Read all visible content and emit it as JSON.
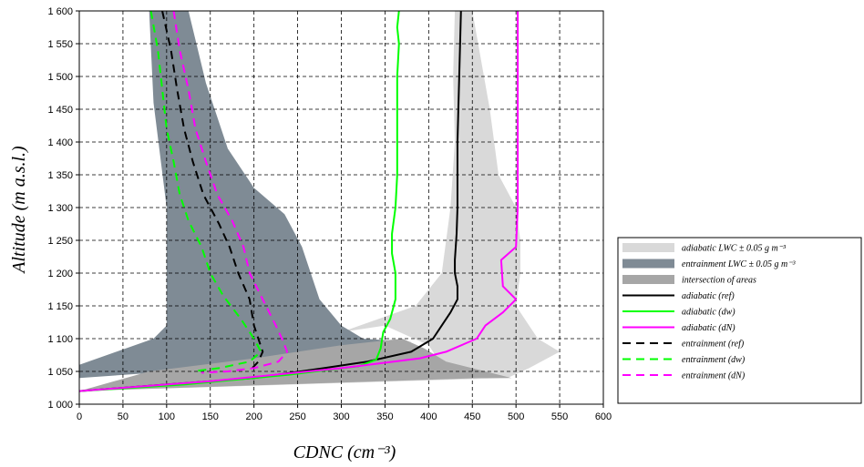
{
  "chart_data": {
    "type": "line",
    "xlabel": "CDNC (cm⁻³)",
    "ylabel": "Altitude (m a.s.l.)",
    "xlim": [
      0,
      600
    ],
    "ylim": [
      1000,
      1600
    ],
    "x_ticks": [
      "0",
      "50",
      "100",
      "150",
      "200",
      "250",
      "300",
      "350",
      "400",
      "450",
      "500",
      "550",
      "600"
    ],
    "y_ticks": [
      "1 000",
      "1 050",
      "1 100",
      "1 150",
      "1 200",
      "1 250",
      "1 300",
      "1 350",
      "1 400",
      "1 450",
      "1 500",
      "1 550",
      "1 600"
    ],
    "grid": true,
    "legend_position": "right",
    "areas": [
      {
        "name": "adiabatic LWC ± 0.05 g m⁻³",
        "color": "#d9d9d9",
        "polygon": [
          [
            430,
            1600
          ],
          [
            450,
            1600
          ],
          [
            470,
            1450
          ],
          [
            480,
            1350
          ],
          [
            500,
            1300
          ],
          [
            505,
            1250
          ],
          [
            505,
            1200
          ],
          [
            500,
            1150
          ],
          [
            525,
            1100
          ],
          [
            550,
            1080
          ],
          [
            515,
            1055
          ],
          [
            490,
            1040
          ],
          [
            0,
            1020
          ],
          [
            420,
            1050
          ],
          [
            400,
            1090
          ],
          [
            350,
            1120
          ],
          [
            300,
            1110
          ],
          [
            385,
            1150
          ],
          [
            415,
            1200
          ],
          [
            425,
            1300
          ],
          [
            430,
            1400
          ],
          [
            428,
            1500
          ]
        ]
      },
      {
        "name": "entrainment LWC ± 0.05 g m⁻³",
        "color": "#7f8b95",
        "polygon": [
          [
            80,
            1600
          ],
          [
            125,
            1600
          ],
          [
            145,
            1490
          ],
          [
            170,
            1390
          ],
          [
            200,
            1330
          ],
          [
            235,
            1290
          ],
          [
            255,
            1240
          ],
          [
            265,
            1200
          ],
          [
            275,
            1160
          ],
          [
            300,
            1120
          ],
          [
            325,
            1100
          ],
          [
            380,
            1095
          ],
          [
            270,
            1065
          ],
          [
            0,
            1040
          ],
          [
            0,
            1060
          ],
          [
            85,
            1100
          ],
          [
            100,
            1120
          ],
          [
            100,
            1300
          ],
          [
            85,
            1460
          ]
        ]
      },
      {
        "name": "intersection of areas",
        "color": "#a6a6a6",
        "polygon": [
          [
            0,
            1020
          ],
          [
            80,
            1050
          ],
          [
            200,
            1070
          ],
          [
            300,
            1090
          ],
          [
            370,
            1100
          ],
          [
            395,
            1085
          ],
          [
            420,
            1065
          ],
          [
            495,
            1040
          ],
          [
            460,
            1040
          ]
        ]
      }
    ],
    "series": [
      {
        "name": "adiabatic (ref)",
        "color": "#000000",
        "dash": "solid",
        "points": [
          [
            0,
            1020
          ],
          [
            100,
            1030
          ],
          [
            200,
            1040
          ],
          [
            280,
            1055
          ],
          [
            330,
            1065
          ],
          [
            380,
            1080
          ],
          [
            405,
            1100
          ],
          [
            415,
            1120
          ],
          [
            425,
            1140
          ],
          [
            433,
            1160
          ],
          [
            433,
            1180
          ],
          [
            430,
            1200
          ],
          [
            430,
            1220
          ],
          [
            432,
            1260
          ],
          [
            433,
            1300
          ],
          [
            433,
            1400
          ],
          [
            434,
            1450
          ],
          [
            436,
            1550
          ],
          [
            437,
            1600
          ]
        ]
      },
      {
        "name": "adiabatic (dw)",
        "color": "#00ff00",
        "dash": "solid",
        "points": [
          [
            0,
            1020
          ],
          [
            120,
            1030
          ],
          [
            240,
            1045
          ],
          [
            320,
            1058
          ],
          [
            340,
            1068
          ],
          [
            345,
            1085
          ],
          [
            348,
            1110
          ],
          [
            356,
            1130
          ],
          [
            362,
            1160
          ],
          [
            362,
            1200
          ],
          [
            358,
            1230
          ],
          [
            358,
            1260
          ],
          [
            362,
            1300
          ],
          [
            364,
            1350
          ],
          [
            364,
            1500
          ],
          [
            366,
            1550
          ],
          [
            364,
            1575
          ],
          [
            366,
            1600
          ]
        ]
      },
      {
        "name": "adiabatic (dN)",
        "color": "#ff00ff",
        "dash": "solid",
        "points": [
          [
            0,
            1020
          ],
          [
            150,
            1035
          ],
          [
            300,
            1055
          ],
          [
            390,
            1070
          ],
          [
            420,
            1080
          ],
          [
            455,
            1100
          ],
          [
            465,
            1120
          ],
          [
            485,
            1140
          ],
          [
            500,
            1160
          ],
          [
            485,
            1180
          ],
          [
            483,
            1220
          ],
          [
            500,
            1240
          ],
          [
            502,
            1300
          ],
          [
            502,
            1400
          ],
          [
            502,
            1500
          ],
          [
            502,
            1600
          ]
        ]
      },
      {
        "name": "entrainment (ref)",
        "color": "#000000",
        "dash": "dash",
        "points": [
          [
            95,
            1600
          ],
          [
            105,
            1540
          ],
          [
            112,
            1480
          ],
          [
            120,
            1420
          ],
          [
            130,
            1370
          ],
          [
            142,
            1320
          ],
          [
            160,
            1275
          ],
          [
            172,
            1240
          ],
          [
            182,
            1200
          ],
          [
            195,
            1160
          ],
          [
            200,
            1120
          ],
          [
            205,
            1100
          ],
          [
            210,
            1080
          ],
          [
            205,
            1065
          ],
          [
            198,
            1055
          ]
        ]
      },
      {
        "name": "entrainment (dw)",
        "color": "#00ff00",
        "dash": "dash",
        "points": [
          [
            82,
            1600
          ],
          [
            90,
            1540
          ],
          [
            95,
            1480
          ],
          [
            100,
            1420
          ],
          [
            108,
            1370
          ],
          [
            115,
            1320
          ],
          [
            125,
            1280
          ],
          [
            140,
            1240
          ],
          [
            150,
            1200
          ],
          [
            165,
            1165
          ],
          [
            185,
            1130
          ],
          [
            200,
            1100
          ],
          [
            208,
            1080
          ],
          [
            195,
            1065
          ],
          [
            160,
            1055
          ],
          [
            130,
            1050
          ]
        ]
      },
      {
        "name": "entrainment (dN)",
        "color": "#ff00ff",
        "dash": "dash",
        "points": [
          [
            108,
            1600
          ],
          [
            115,
            1540
          ],
          [
            125,
            1480
          ],
          [
            133,
            1420
          ],
          [
            145,
            1370
          ],
          [
            158,
            1320
          ],
          [
            175,
            1280
          ],
          [
            188,
            1240
          ],
          [
            195,
            1200
          ],
          [
            210,
            1160
          ],
          [
            225,
            1120
          ],
          [
            232,
            1100
          ],
          [
            238,
            1080
          ],
          [
            228,
            1065
          ],
          [
            200,
            1055
          ],
          [
            170,
            1050
          ],
          [
            140,
            1048
          ]
        ]
      }
    ]
  }
}
